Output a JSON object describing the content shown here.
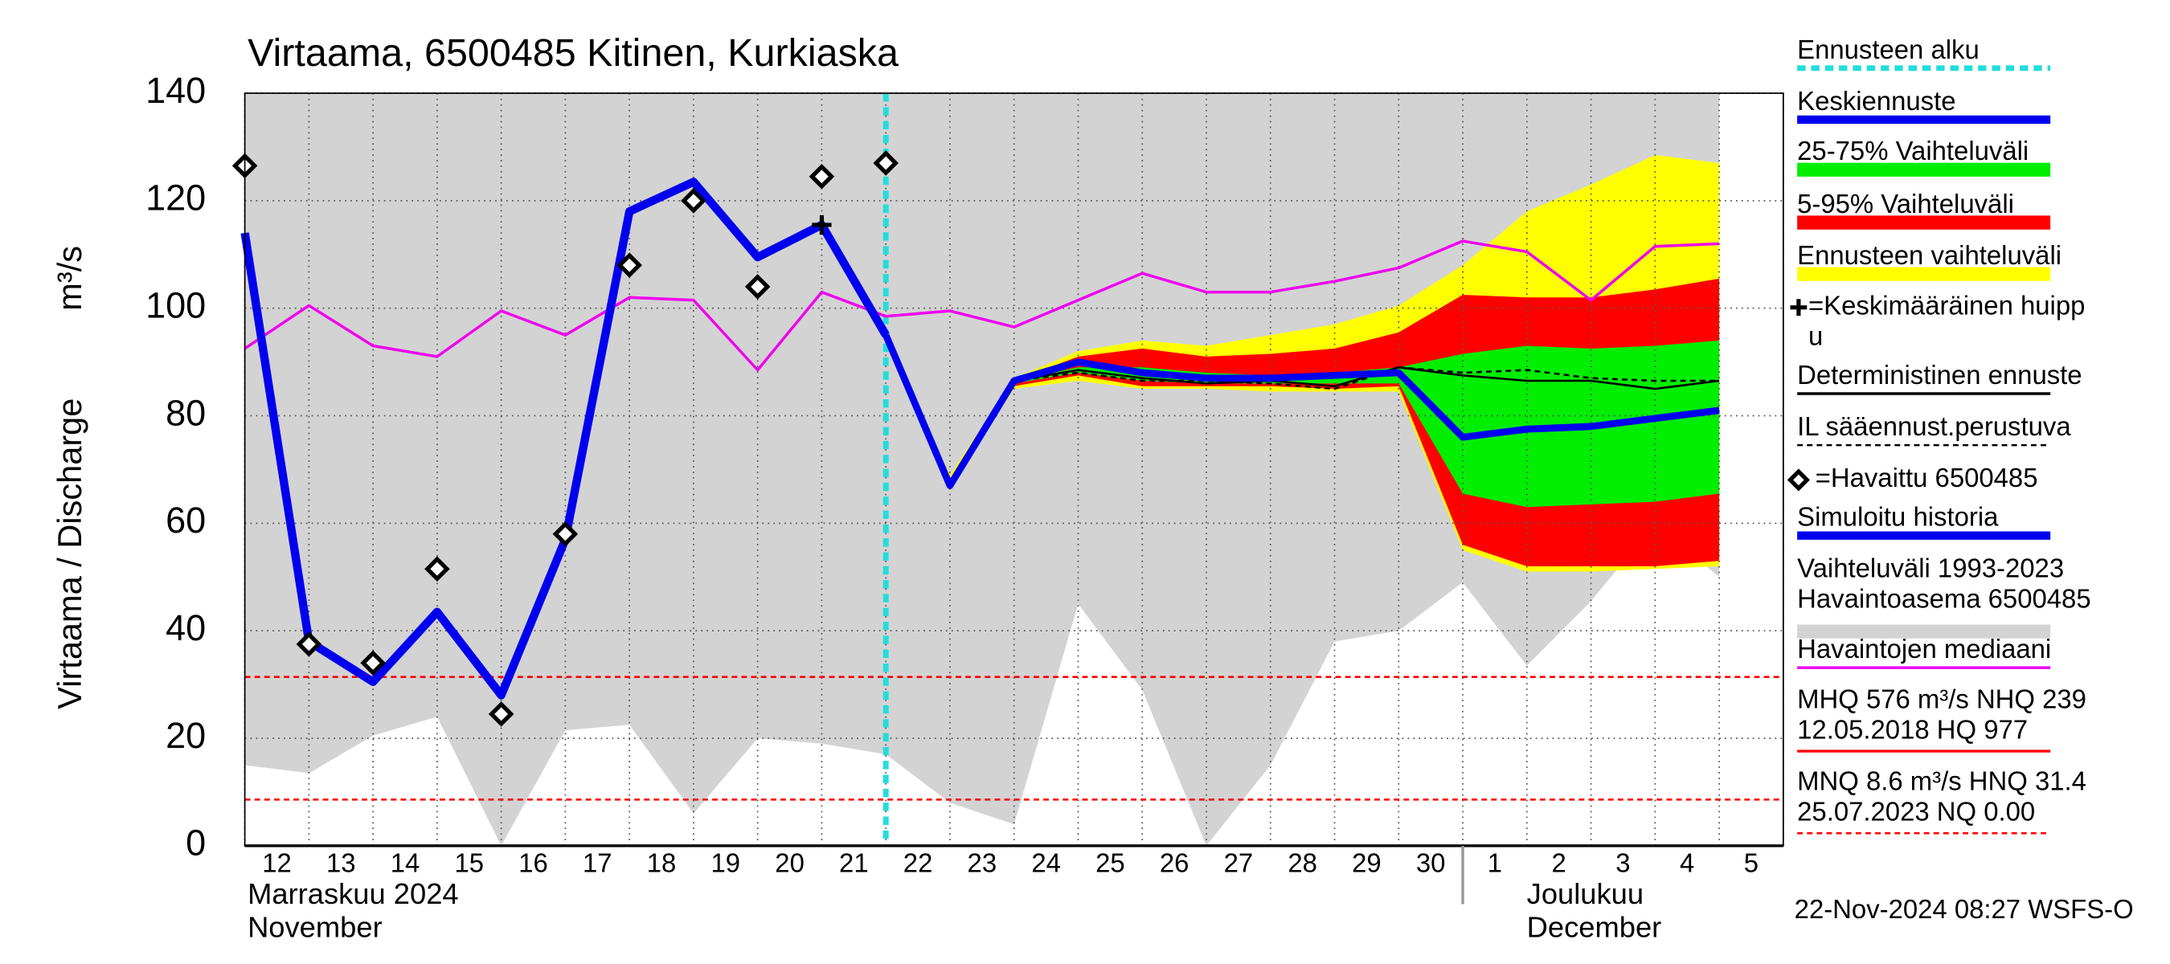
{
  "chart_data": {
    "type": "line",
    "title": "Virtaama, 6500485 Kitinen, Kurkiaska",
    "ylabel": [
      "Virtaama / Discharge",
      "m³/s"
    ],
    "categories": [
      "12",
      "13",
      "14",
      "15",
      "16",
      "17",
      "18",
      "19",
      "20",
      "21",
      "22",
      "23",
      "24",
      "25",
      "26",
      "27",
      "28",
      "29",
      "30",
      "1",
      "2",
      "3",
      "4",
      "5"
    ],
    "month_labels": [
      {
        "at": "12",
        "lines": [
          "Marraskuu 2024",
          "November"
        ]
      },
      {
        "at": "1",
        "lines": [
          "Joulukuu",
          "December"
        ]
      }
    ],
    "ylim": [
      0,
      140
    ],
    "yticks": [
      0,
      20,
      40,
      60,
      80,
      100,
      120,
      140
    ],
    "grid": true,
    "forecast_start": {
      "name": "Ennusteen alku",
      "at": "22",
      "color": "#22dddd"
    },
    "series": [
      {
        "name": "Keskiennuste",
        "style": "line",
        "color": "#0000ee",
        "width": 5,
        "values": [
          null,
          null,
          null,
          null,
          null,
          null,
          null,
          null,
          null,
          null,
          95,
          67,
          86.5,
          90,
          88,
          87,
          87,
          87.5,
          88,
          76,
          77.5,
          78,
          79.5,
          81
        ]
      },
      {
        "name": "25-75% Vaihteluväli",
        "style": "band",
        "color": "#00ee00",
        "high": [
          null,
          null,
          null,
          null,
          null,
          null,
          null,
          null,
          null,
          null,
          95,
          67.5,
          86.5,
          89,
          89,
          88,
          87.5,
          88,
          89,
          91.5,
          93,
          92.5,
          93,
          94
        ],
        "low": [
          null,
          null,
          null,
          null,
          null,
          null,
          null,
          null,
          null,
          null,
          95,
          67,
          86,
          88,
          86.5,
          86,
          86,
          86,
          86,
          65.5,
          63,
          63.5,
          64,
          65.5
        ]
      },
      {
        "name": "5-95% Vaihteluväli",
        "style": "band",
        "color": "#ff0000",
        "high": [
          null,
          null,
          null,
          null,
          null,
          null,
          null,
          null,
          null,
          null,
          95,
          68,
          86.5,
          91,
          92.5,
          91,
          91.5,
          92.5,
          95.5,
          102.5,
          102,
          102,
          103.5,
          105.5
        ],
        "low": [
          null,
          null,
          null,
          null,
          null,
          null,
          null,
          null,
          null,
          null,
          95,
          67,
          85.5,
          87.5,
          85.5,
          85.5,
          85.5,
          85,
          85.5,
          56,
          52,
          52,
          52,
          53
        ]
      },
      {
        "name": "Ennusteen vaihteluväli",
        "style": "band",
        "color": "#ffff00",
        "high": [
          null,
          null,
          null,
          null,
          null,
          null,
          null,
          null,
          null,
          null,
          95,
          69,
          87,
          92,
          94,
          93,
          95,
          97,
          100.5,
          108,
          118,
          123,
          128.5,
          127
        ],
        "low": [
          null,
          null,
          null,
          null,
          null,
          null,
          null,
          null,
          null,
          null,
          95,
          66.5,
          85,
          86.5,
          85,
          85,
          84.5,
          84.5,
          84.5,
          55,
          51,
          51,
          51.5,
          52
        ]
      },
      {
        "name": [
          "=Keskimääräinen huipp",
          "u"
        ],
        "style": "plus",
        "color": "#000000",
        "values": [
          null,
          null,
          null,
          null,
          null,
          null,
          null,
          null,
          null,
          115.5,
          null,
          null,
          null,
          null,
          null,
          null,
          null,
          null,
          null,
          null,
          null,
          null,
          null,
          null
        ]
      },
      {
        "name": "Deterministinen ennuste",
        "style": "line",
        "color": "#000000",
        "width": 1.5,
        "values": [
          null,
          null,
          null,
          null,
          null,
          null,
          null,
          null,
          null,
          null,
          95,
          67,
          86.5,
          88.5,
          87,
          86,
          86.5,
          85.5,
          89,
          87.5,
          86.5,
          86.5,
          85,
          86.5
        ]
      },
      {
        "name": "IL sääennust.perustuva",
        "style": "dashed",
        "color": "#000000",
        "width": 1.5,
        "values": [
          null,
          null,
          null,
          null,
          null,
          null,
          null,
          null,
          null,
          null,
          null,
          null,
          86.5,
          88,
          86.5,
          86.5,
          86,
          85,
          89,
          88,
          88.5,
          87,
          86.5,
          86.5
        ]
      },
      {
        "name": "=Havaittu 6500485",
        "style": "diamond",
        "color": "#000000",
        "values": [
          126.5,
          37.5,
          34,
          51.5,
          24.5,
          58,
          108,
          120,
          104,
          124.5,
          127,
          null,
          null,
          null,
          null,
          null,
          null,
          null,
          null,
          null,
          null,
          null,
          null,
          null
        ]
      },
      {
        "name": "Simuloitu historia",
        "style": "line",
        "color": "#0000ee",
        "width": 6,
        "values": [
          114,
          38,
          30.5,
          43.5,
          28,
          57,
          118,
          123.5,
          109.5,
          115.5,
          95,
          null,
          null,
          null,
          null,
          null,
          null,
          null,
          null,
          null,
          null,
          null,
          null,
          null
        ]
      },
      {
        "name": [
          "Vaihteluväli 1993-2023",
          " Havaintoasema 6500485"
        ],
        "style": "band",
        "color": "#d3d3d3",
        "high": [
          140,
          140,
          140,
          140,
          140,
          140,
          140,
          140,
          140,
          140,
          140,
          140,
          140,
          140,
          140,
          140,
          140,
          140,
          140,
          140,
          140,
          140,
          140,
          140
        ],
        "low": [
          15,
          13.5,
          20.5,
          24,
          0,
          21.5,
          22.5,
          6,
          20,
          19,
          17,
          8,
          4,
          45,
          29,
          0,
          15,
          38,
          40,
          49,
          33.5,
          45.5,
          60,
          50
        ]
      },
      {
        "name": "Havaintojen mediaani",
        "style": "line",
        "color": "#ee00ee",
        "width": 2,
        "values": [
          92.5,
          100.5,
          93,
          91,
          99.5,
          95,
          102,
          101.5,
          88.5,
          103,
          98.5,
          99.5,
          96.5,
          101.5,
          106.5,
          103,
          103,
          105,
          107.5,
          112.5,
          110.5,
          101.5,
          111.5,
          112
        ]
      }
    ],
    "stats": [
      {
        "lines": [
          "MHQ  576 m³/s NHQ  239",
          "12.05.2018 HQ  977"
        ],
        "style": "line",
        "color": "#ff0000"
      },
      {
        "lines": [
          "MNQ  8.6 m³/s HNQ 31.4",
          "25.07.2023 NQ 0.00"
        ],
        "style": "dashed",
        "color": "#ff0000"
      }
    ],
    "hlines": [
      31.4,
      8.6,
      0
    ],
    "hline_color": "#ff0000",
    "footer": "22-Nov-2024 08:27 WSFS-O"
  }
}
